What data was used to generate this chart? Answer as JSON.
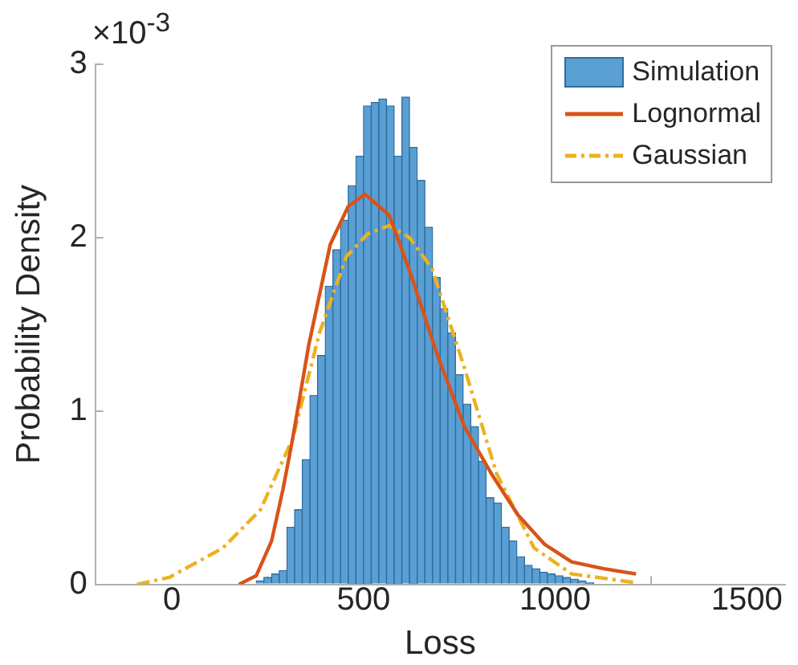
{
  "chart_data": {
    "type": "histogram",
    "xlabel": "Loss",
    "ylabel": "Probability Density",
    "annotations": [
      "×10$^{-3}$"
    ],
    "xlim": [
      -200,
      1600
    ],
    "xticks": [
      0,
      500,
      1000,
      1500
    ],
    "ylim": [
      0,
      3
    ],
    "yticks": [
      0,
      1,
      2,
      3
    ],
    "grid": false,
    "legend": "top right",
    "series": [
      {
        "name": "Simulation",
        "color": "#5a9fd4",
        "bins": [
          220,
          240,
          260,
          280,
          300,
          320,
          340,
          360,
          380,
          400,
          420,
          440,
          460,
          480,
          500,
          520,
          540,
          560,
          580,
          600,
          620,
          640,
          660,
          680,
          700,
          720,
          740,
          760,
          780,
          800,
          820,
          840,
          860,
          880,
          900,
          920,
          940,
          960,
          980,
          1000,
          1020,
          1040,
          1060,
          1080,
          1100
        ],
        "values": [
          0.02,
          0.04,
          0.06,
          0.08,
          0.33,
          0.43,
          0.72,
          1.09,
          1.32,
          1.72,
          1.93,
          2.1,
          2.3,
          2.47,
          2.76,
          2.78,
          2.8,
          2.76,
          2.47,
          2.81,
          2.52,
          2.33,
          2.06,
          1.77,
          1.59,
          1.45,
          1.21,
          1.04,
          0.91,
          0.71,
          0.5,
          0.47,
          0.33,
          0.25,
          0.16,
          0.11,
          0.09,
          0.07,
          0.06,
          0.05,
          0.04,
          0.03,
          0.02,
          0.01
        ]
      },
      {
        "name": "Lognormal",
        "type": "line",
        "color": "#d95319",
        "line_style": "solid",
        "x": [
          175,
          220,
          260,
          290,
          315,
          357,
          413,
          460,
          504,
          567,
          623,
          693,
          763,
          833,
          903,
          973,
          1043,
          1127,
          1211
        ],
        "values": [
          0,
          0.05,
          0.25,
          0.55,
          0.84,
          1.38,
          1.96,
          2.18,
          2.25,
          2.13,
          1.79,
          1.32,
          0.91,
          0.64,
          0.4,
          0.23,
          0.13,
          0.09,
          0.06
        ]
      },
      {
        "name": "Gaussian",
        "type": "line",
        "color": "#edb120",
        "line_style": "dashed",
        "x": [
          -91,
          -7,
          133,
          231,
          315,
          385,
          455,
          510,
          567,
          620,
          679,
          763,
          847,
          945,
          1043,
          1211
        ],
        "values": [
          0,
          0.04,
          0.21,
          0.43,
          0.84,
          1.45,
          1.89,
          2.02,
          2.07,
          2.0,
          1.82,
          1.25,
          0.64,
          0.21,
          0.06,
          0.01
        ]
      }
    ]
  }
}
